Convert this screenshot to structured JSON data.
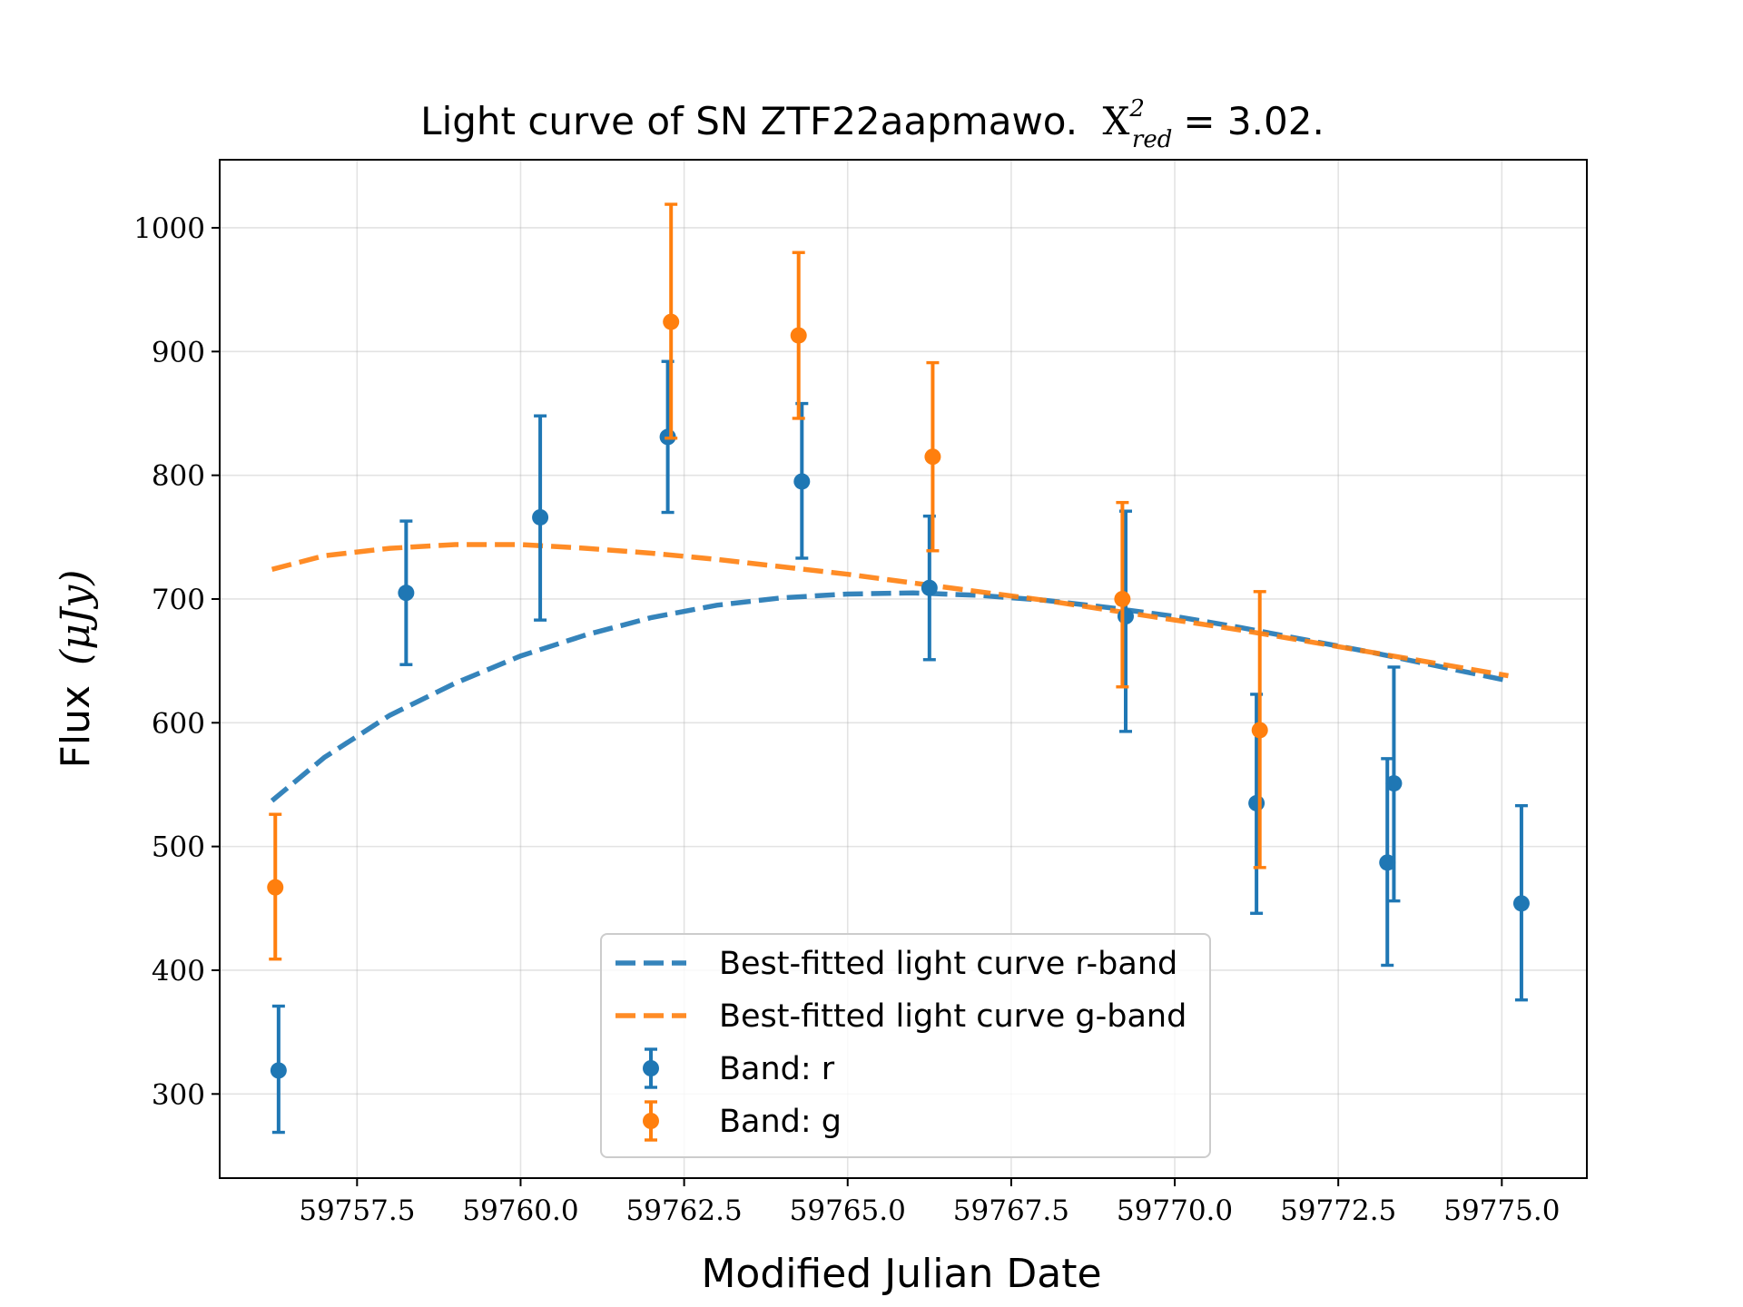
{
  "chart_data": {
    "type": "scatter",
    "title_prefix": "Light curve of SN ZTF22aapmawo.",
    "title_stat_symbol": "X",
    "title_stat_sup": "2",
    "title_stat_sub": "red",
    "title_stat_value": "= 3.02.",
    "xlabel": "Modified Julian Date",
    "ylabel_text": "Flux",
    "ylabel_unit": "(μJy)",
    "xlim": [
      59755.4,
      59776.3
    ],
    "ylim": [
      232,
      1055
    ],
    "x_ticks": [
      {
        "value": 59757.5,
        "label": "59757.5"
      },
      {
        "value": 59760.0,
        "label": "59760.0"
      },
      {
        "value": 59762.5,
        "label": "59762.5"
      },
      {
        "value": 59765.0,
        "label": "59765.0"
      },
      {
        "value": 59767.5,
        "label": "59767.5"
      },
      {
        "value": 59770.0,
        "label": "59770.0"
      },
      {
        "value": 59772.5,
        "label": "59772.5"
      },
      {
        "value": 59775.0,
        "label": "59775.0"
      }
    ],
    "y_ticks": [
      {
        "value": 300,
        "label": "300"
      },
      {
        "value": 400,
        "label": "400"
      },
      {
        "value": 500,
        "label": "500"
      },
      {
        "value": 600,
        "label": "600"
      },
      {
        "value": 700,
        "label": "700"
      },
      {
        "value": 800,
        "label": "800"
      },
      {
        "value": 900,
        "label": "900"
      },
      {
        "value": 1000,
        "label": "1000"
      }
    ],
    "grid": true,
    "legend_position": "bottom-center",
    "series": [
      {
        "name": "Band: r",
        "kind": "errorbar",
        "color": "#1f77b4",
        "points": [
          {
            "x": 59756.3,
            "y": 319,
            "lo": 269,
            "hi": 371
          },
          {
            "x": 59758.25,
            "y": 705,
            "lo": 647,
            "hi": 763
          },
          {
            "x": 59760.3,
            "y": 766,
            "lo": 683,
            "hi": 848
          },
          {
            "x": 59762.25,
            "y": 831,
            "lo": 770,
            "hi": 892
          },
          {
            "x": 59764.3,
            "y": 795,
            "lo": 733,
            "hi": 858
          },
          {
            "x": 59766.25,
            "y": 709,
            "lo": 651,
            "hi": 767
          },
          {
            "x": 59769.25,
            "y": 686,
            "lo": 593,
            "hi": 771
          },
          {
            "x": 59771.25,
            "y": 535,
            "lo": 446,
            "hi": 623
          },
          {
            "x": 59773.25,
            "y": 487,
            "lo": 404,
            "hi": 571
          },
          {
            "x": 59773.35,
            "y": 551,
            "lo": 456,
            "hi": 645
          },
          {
            "x": 59775.3,
            "y": 454,
            "lo": 376,
            "hi": 533
          }
        ]
      },
      {
        "name": "Band: g",
        "kind": "errorbar",
        "color": "#ff7f0e",
        "points": [
          {
            "x": 59756.25,
            "y": 467,
            "lo": 409,
            "hi": 526
          },
          {
            "x": 59762.3,
            "y": 924,
            "lo": 830,
            "hi": 1019
          },
          {
            "x": 59764.25,
            "y": 913,
            "lo": 846,
            "hi": 980
          },
          {
            "x": 59766.3,
            "y": 815,
            "lo": 739,
            "hi": 891
          },
          {
            "x": 59769.2,
            "y": 700,
            "lo": 629,
            "hi": 778
          },
          {
            "x": 59771.3,
            "y": 594,
            "lo": 483,
            "hi": 706
          }
        ]
      },
      {
        "name": "Best-fitted light curve r-band",
        "kind": "fit",
        "color": "#1f77b4",
        "points": [
          {
            "x": 59756.2,
            "y": 537
          },
          {
            "x": 59757.0,
            "y": 572
          },
          {
            "x": 59758.0,
            "y": 606
          },
          {
            "x": 59759.0,
            "y": 632
          },
          {
            "x": 59760.0,
            "y": 654
          },
          {
            "x": 59761.0,
            "y": 671
          },
          {
            "x": 59762.0,
            "y": 685
          },
          {
            "x": 59763.0,
            "y": 695
          },
          {
            "x": 59764.0,
            "y": 701
          },
          {
            "x": 59765.0,
            "y": 704
          },
          {
            "x": 59766.0,
            "y": 705
          },
          {
            "x": 59767.0,
            "y": 703
          },
          {
            "x": 59768.0,
            "y": 699
          },
          {
            "x": 59769.0,
            "y": 693
          },
          {
            "x": 59770.0,
            "y": 686
          },
          {
            "x": 59771.0,
            "y": 677
          },
          {
            "x": 59772.0,
            "y": 667
          },
          {
            "x": 59773.0,
            "y": 657
          },
          {
            "x": 59774.0,
            "y": 646
          },
          {
            "x": 59775.1,
            "y": 634
          }
        ]
      },
      {
        "name": "Best-fitted light curve g-band",
        "kind": "fit",
        "color": "#ff7f0e",
        "points": [
          {
            "x": 59756.2,
            "y": 724
          },
          {
            "x": 59757.0,
            "y": 735
          },
          {
            "x": 59758.0,
            "y": 741
          },
          {
            "x": 59759.0,
            "y": 744
          },
          {
            "x": 59760.0,
            "y": 744
          },
          {
            "x": 59761.0,
            "y": 741
          },
          {
            "x": 59762.0,
            "y": 737
          },
          {
            "x": 59763.0,
            "y": 732
          },
          {
            "x": 59764.0,
            "y": 726
          },
          {
            "x": 59765.0,
            "y": 720
          },
          {
            "x": 59766.0,
            "y": 713
          },
          {
            "x": 59767.0,
            "y": 706
          },
          {
            "x": 59768.0,
            "y": 699
          },
          {
            "x": 59769.0,
            "y": 691
          },
          {
            "x": 59770.0,
            "y": 683
          },
          {
            "x": 59771.0,
            "y": 675
          },
          {
            "x": 59772.0,
            "y": 666
          },
          {
            "x": 59773.0,
            "y": 657
          },
          {
            "x": 59774.0,
            "y": 648
          },
          {
            "x": 59775.1,
            "y": 638
          }
        ]
      }
    ],
    "legend_order": [
      "Best-fitted light curve r-band",
      "Best-fitted light curve g-band",
      "Band: r",
      "Band: g"
    ]
  }
}
